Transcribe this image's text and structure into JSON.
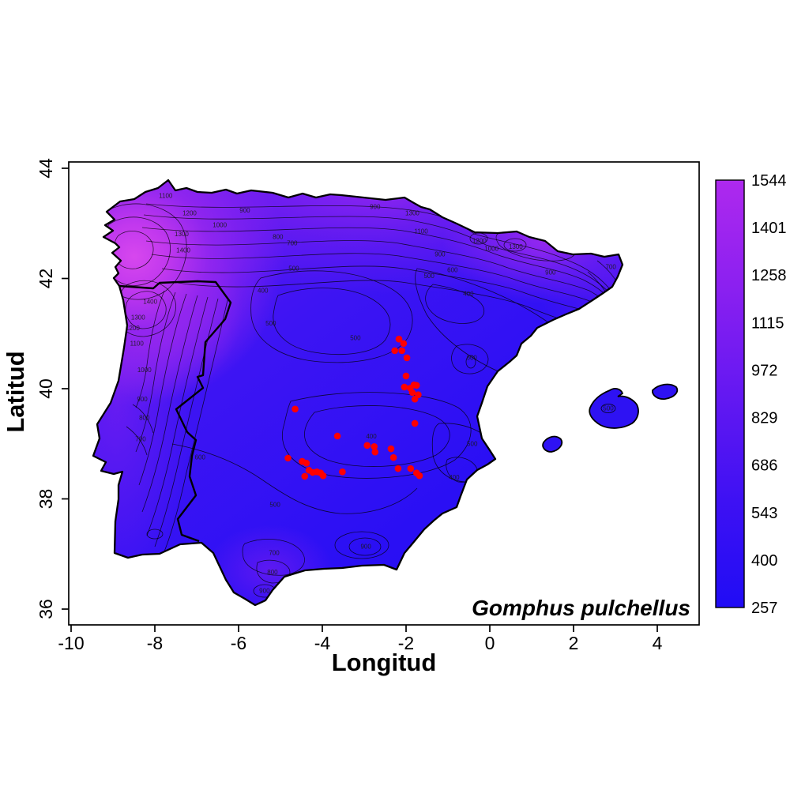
{
  "figure": {
    "species_label": "Gomphus pulchellus",
    "background": "#ffffff",
    "map_region": "Iberian Peninsula"
  },
  "axes": {
    "x": {
      "label": "Longitud",
      "ticks": [
        -10,
        -8,
        -6,
        -4,
        -2,
        0,
        2,
        4
      ],
      "range": [
        -10.1,
        5.0
      ]
    },
    "y": {
      "label": "Latitud",
      "ticks": [
        36,
        38,
        40,
        42,
        44
      ],
      "range": [
        35.7,
        44.1
      ]
    }
  },
  "colorbar": {
    "ticks": [
      1544,
      1401,
      1258,
      1115,
      972,
      829,
      686,
      543,
      400,
      257
    ],
    "min": 257,
    "max": 1544,
    "low_color": "#200cf5",
    "high_color": "#ae29ee"
  },
  "chart_data": {
    "type": "heatmap",
    "title": "Gomphus pulchellus",
    "xlabel": "Longitud",
    "ylabel": "Latitud",
    "xlim": [
      -10.1,
      5.0
    ],
    "ylim": [
      35.7,
      44.1
    ],
    "region": "Iberian Peninsula with Balearic Islands",
    "colorscale": {
      "min": 257,
      "max": 1544,
      "ticks": [
        257,
        400,
        543,
        686,
        829,
        972,
        1115,
        1258,
        1401,
        1544
      ],
      "low_color": "#200cf5",
      "high_color": "#ae29ee"
    },
    "contour_labels": [
      {
        "v": 1100,
        "lon": -7.74,
        "lat": 43.5
      },
      {
        "v": 1200,
        "lon": -7.17,
        "lat": 43.18
      },
      {
        "v": 1300,
        "lon": -7.36,
        "lat": 42.8
      },
      {
        "v": 1400,
        "lon": -7.32,
        "lat": 42.51
      },
      {
        "v": 1400,
        "lon": -8.11,
        "lat": 41.58
      },
      {
        "v": 1300,
        "lon": -8.4,
        "lat": 41.29
      },
      {
        "v": 1200,
        "lon": -8.53,
        "lat": 41.1
      },
      {
        "v": 1100,
        "lon": -8.43,
        "lat": 40.82
      },
      {
        "v": 1000,
        "lon": -8.25,
        "lat": 40.34
      },
      {
        "v": 900,
        "lon": -8.3,
        "lat": 39.81
      },
      {
        "v": 800,
        "lon": -8.25,
        "lat": 39.47
      },
      {
        "v": 700,
        "lon": -8.34,
        "lat": 39.08
      },
      {
        "v": 1000,
        "lon": -6.45,
        "lat": 42.97
      },
      {
        "v": 900,
        "lon": -5.85,
        "lat": 43.23
      },
      {
        "v": 800,
        "lon": -5.06,
        "lat": 42.75
      },
      {
        "v": 700,
        "lon": -4.72,
        "lat": 42.64
      },
      {
        "v": 500,
        "lon": -4.68,
        "lat": 42.18
      },
      {
        "v": 400,
        "lon": -5.42,
        "lat": 41.78
      },
      {
        "v": 900,
        "lon": -2.74,
        "lat": 43.3
      },
      {
        "v": 1300,
        "lon": -1.85,
        "lat": 43.18
      },
      {
        "v": 1100,
        "lon": -1.64,
        "lat": 42.85
      },
      {
        "v": 1200,
        "lon": -0.25,
        "lat": 42.68
      },
      {
        "v": 1000,
        "lon": 0.04,
        "lat": 42.54
      },
      {
        "v": 1300,
        "lon": 0.62,
        "lat": 42.57
      },
      {
        "v": 900,
        "lon": -1.19,
        "lat": 42.44
      },
      {
        "v": 600,
        "lon": -0.89,
        "lat": 42.15
      },
      {
        "v": 500,
        "lon": -1.45,
        "lat": 42.04
      },
      {
        "v": 400,
        "lon": -0.51,
        "lat": 41.72
      },
      {
        "v": 900,
        "lon": 1.45,
        "lat": 42.11
      },
      {
        "v": 700,
        "lon": 2.89,
        "lat": 42.21
      },
      {
        "v": 500,
        "lon": -3.21,
        "lat": 40.92
      },
      {
        "v": 500,
        "lon": -5.23,
        "lat": 41.18
      },
      {
        "v": 600,
        "lon": -0.43,
        "lat": 40.56
      },
      {
        "v": 400,
        "lon": -2.83,
        "lat": 39.13
      },
      {
        "v": 500,
        "lon": -0.42,
        "lat": 39.0
      },
      {
        "v": 400,
        "lon": -0.85,
        "lat": 38.39
      },
      {
        "v": 500,
        "lon": -5.13,
        "lat": 37.89
      },
      {
        "v": 600,
        "lon": -6.92,
        "lat": 38.75
      },
      {
        "v": 700,
        "lon": -5.15,
        "lat": 37.02
      },
      {
        "v": 800,
        "lon": -5.19,
        "lat": 36.67
      },
      {
        "v": 900,
        "lon": -5.38,
        "lat": 36.33
      },
      {
        "v": 900,
        "lon": -2.96,
        "lat": 37.13
      },
      {
        "v": 500,
        "lon": 2.83,
        "lat": 39.64
      }
    ],
    "series": [
      {
        "name": "occurrence_points",
        "type": "scatter",
        "color": "#ff0000",
        "marker": "circle",
        "points_lonlat": [
          [
            -2.17,
            40.9
          ],
          [
            -2.06,
            40.82
          ],
          [
            -2.27,
            40.69
          ],
          [
            -2.1,
            40.69
          ],
          [
            -1.98,
            40.56
          ],
          [
            -2.0,
            40.23
          ],
          [
            -2.04,
            40.03
          ],
          [
            -1.9,
            40.01
          ],
          [
            -1.81,
            40.07
          ],
          [
            -1.75,
            40.06
          ],
          [
            -1.85,
            39.93
          ],
          [
            -1.71,
            39.89
          ],
          [
            -1.79,
            39.81
          ],
          [
            -1.79,
            39.37
          ],
          [
            -4.65,
            39.63
          ],
          [
            -3.64,
            39.14
          ],
          [
            -2.93,
            38.97
          ],
          [
            -2.76,
            38.95
          ],
          [
            -2.74,
            38.85
          ],
          [
            -2.36,
            38.91
          ],
          [
            -2.3,
            38.75
          ],
          [
            -4.82,
            38.74
          ],
          [
            -4.48,
            38.68
          ],
          [
            -4.38,
            38.65
          ],
          [
            -4.32,
            38.52
          ],
          [
            -4.42,
            38.41
          ],
          [
            -4.23,
            38.48
          ],
          [
            -4.13,
            38.49
          ],
          [
            -4.04,
            38.47
          ],
          [
            -3.98,
            38.42
          ],
          [
            -3.52,
            38.49
          ],
          [
            -2.19,
            38.55
          ],
          [
            -1.89,
            38.55
          ],
          [
            -1.75,
            38.47
          ],
          [
            -1.68,
            38.42
          ]
        ]
      }
    ]
  }
}
